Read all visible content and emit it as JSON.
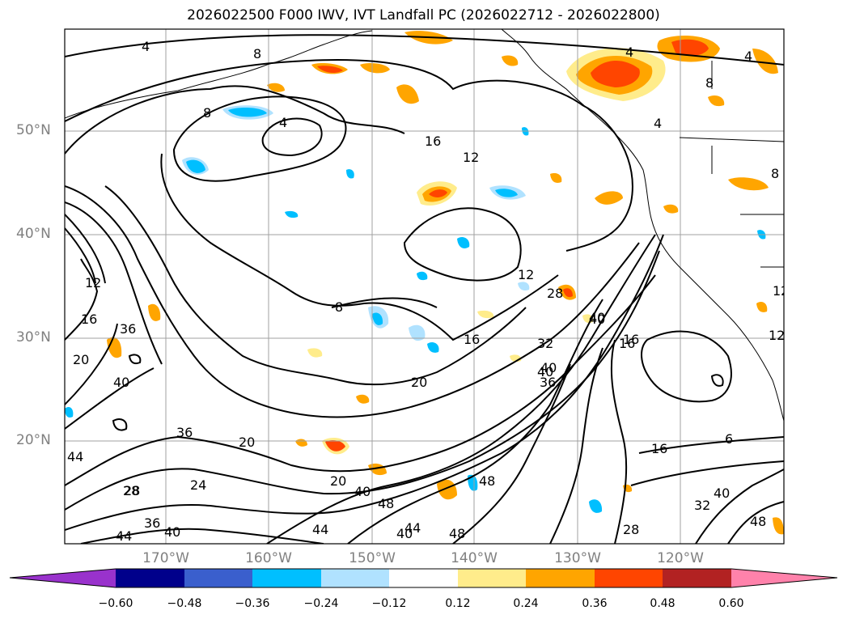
{
  "title": "2026022500 F000 IWV, IVT Landfall PC (2026022712 - 2026022800)",
  "lat_labels": [
    "50°N",
    "40°N",
    "30°N",
    "20°N"
  ],
  "lon_labels": [
    "170°W",
    "160°W",
    "150°W",
    "140°W",
    "130°W",
    "120°W"
  ],
  "colorbar": {
    "levels": [
      "−0.60",
      "−0.48",
      "−0.36",
      "−0.24",
      "−0.12",
      "0.12",
      "0.24",
      "0.36",
      "0.48",
      "0.60"
    ],
    "colors": [
      "#9932cc",
      "#00008b",
      "#3a5fcd",
      "#00bfff",
      "#b0e2ff",
      "#ffffff",
      "#ffec8b",
      "#ffa500",
      "#ff4500",
      "#b22222",
      "#ff82ab"
    ]
  },
  "contour_labels": [
    "4",
    "8",
    "8",
    "4",
    "4",
    "8",
    "4",
    "4",
    "16",
    "12",
    "12",
    "16",
    "20",
    "20",
    "16",
    "16",
    "40",
    "12",
    "36",
    "40",
    "36",
    "28",
    "36",
    "40",
    "44",
    "44",
    "20",
    "24",
    "28",
    "36",
    "40",
    "20",
    "40",
    "48",
    "40",
    "44",
    "44",
    "48",
    "48",
    "8",
    "28",
    "32",
    "40",
    "16",
    "40",
    "6",
    "16",
    "32",
    "40",
    "48",
    "28",
    "8",
    "12",
    "12"
  ],
  "colors": {
    "contour": "#000000",
    "coast": "#000000",
    "grid": "#a0a0a0"
  }
}
